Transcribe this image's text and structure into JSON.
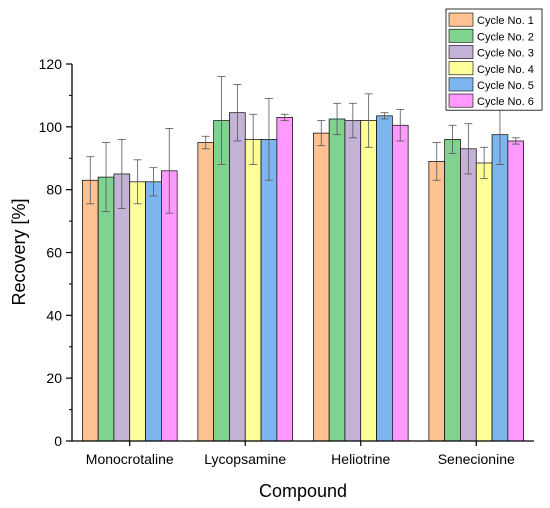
{
  "chart_data": {
    "type": "bar",
    "title": "",
    "xlabel": "Compound",
    "ylabel": "Recovery [%]",
    "ylim": [
      0,
      120
    ],
    "yticks": [
      0,
      20,
      40,
      60,
      80,
      100,
      120
    ],
    "grid": false,
    "legend_position": "top-right",
    "categories": [
      "Monocrotaline",
      "Lycopsamine",
      "Heliotrine",
      "Senecionine"
    ],
    "series": [
      {
        "name": "Cycle No. 1",
        "color": "#FDC192",
        "values": [
          83,
          95,
          98,
          89
        ],
        "errors": [
          7.5,
          2,
          4,
          6
        ]
      },
      {
        "name": "Cycle No. 2",
        "color": "#7FD38E",
        "values": [
          84,
          102,
          102.5,
          96
        ],
        "errors": [
          11,
          14,
          5,
          4.5
        ]
      },
      {
        "name": "Cycle No. 3",
        "color": "#C4B3D6",
        "values": [
          85,
          104.5,
          102,
          93
        ],
        "errors": [
          11,
          9,
          5.5,
          8
        ]
      },
      {
        "name": "Cycle No. 4",
        "color": "#FFFF99",
        "values": [
          82.5,
          96,
          102,
          88.5
        ],
        "errors": [
          7,
          8,
          8.5,
          5
        ]
      },
      {
        "name": "Cycle No. 5",
        "color": "#7DB6EF",
        "values": [
          82.5,
          96,
          103.5,
          97.5
        ],
        "errors": [
          4.5,
          13,
          1,
          9.5
        ]
      },
      {
        "name": "Cycle No. 6",
        "color": "#FF99FF",
        "values": [
          86,
          103,
          100.5,
          95.5
        ],
        "errors": [
          13.5,
          1,
          5,
          1
        ]
      }
    ]
  }
}
